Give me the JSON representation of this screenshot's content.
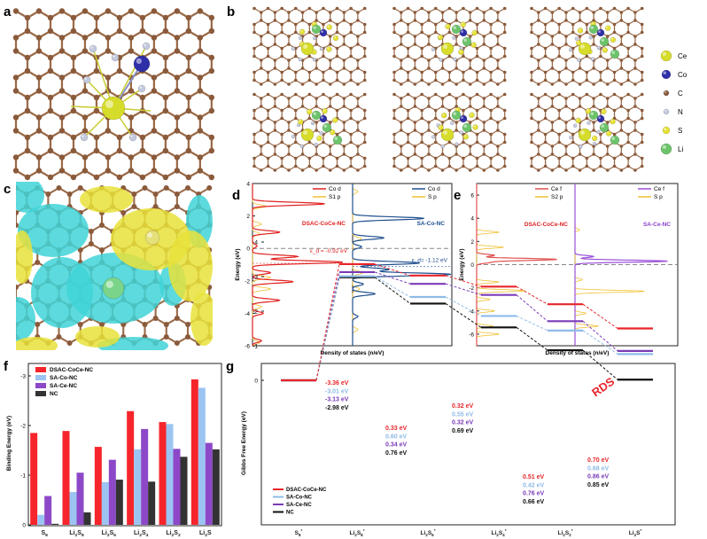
{
  "panel_labels": [
    "a",
    "b",
    "c",
    "d",
    "e",
    "f",
    "g"
  ],
  "colors": {
    "carbon": "#8a5a3b",
    "nitrogen": "#c3c9de",
    "cobalt": "#2f2fa8",
    "cerium": "#d6dc2a",
    "sulfur": "#e6e236",
    "lithium": "#6cc46a",
    "cyan": "#3fd3d8",
    "yellow": "#e8e23a"
  },
  "structure_legend": [
    {
      "label": "Ce",
      "color": "#d6dc2a"
    },
    {
      "label": "Co",
      "color": "#2f2fa8"
    },
    {
      "label": "C",
      "color": "#8a5a3b"
    },
    {
      "label": "N",
      "color": "#c3c9de"
    },
    {
      "label": "S",
      "color": "#e6e236"
    },
    {
      "label": "Li",
      "color": "#6cc46a"
    }
  ],
  "chart_data": [
    {
      "id": "d",
      "type": "line",
      "title": "",
      "xlabel": "Density of states (n/eV)",
      "ylabel": "Energy (eV)",
      "ylim": [
        -6,
        4
      ],
      "yticks": [
        -6,
        -4,
        -2,
        0,
        2,
        4
      ],
      "subplots": [
        {
          "name": "DSAC-CoCe-NC",
          "color": "#e02020",
          "dband_label": "ε_d = -0.92 eV",
          "dband_center": -0.92,
          "series": [
            {
              "name": "Co d",
              "color": "#e02020",
              "peaks": [
                [
                  2.75,
                  0.8
                ],
                [
                  1.0,
                  0.3
                ],
                [
                  0.15,
                  0.05
                ],
                [
                  -0.5,
                  0.5
                ],
                [
                  -0.85,
                  1.0
                ],
                [
                  -1.5,
                  0.2
                ],
                [
                  -2.05,
                  0.45
                ],
                [
                  -3.2,
                  0.3
                ],
                [
                  -4.0,
                  0.12
                ],
                [
                  -5.7,
                  0.1
                ]
              ]
            },
            {
              "name": "S1 p",
              "color": "#f0c030",
              "peaks": [
                [
                  2.6,
                  0.15
                ],
                [
                  1.5,
                  0.1
                ],
                [
                  0.9,
                  0.08
                ],
                [
                  -1.8,
                  0.2
                ],
                [
                  -2.5,
                  0.2
                ],
                [
                  -3.6,
                  0.1
                ],
                [
                  -5.8,
                  0.08
                ]
              ]
            }
          ]
        },
        {
          "name": "SA-Co-NC",
          "color": "#1f4f8f",
          "dband_label": "ε_d= -1.12 eV",
          "dband_center": -1.12,
          "series": [
            {
              "name": "Co d",
              "color": "#1f4f8f",
              "peaks": [
                [
                  1.85,
                  0.8
                ],
                [
                  0.65,
                  0.35
                ],
                [
                  0.1,
                  0.1
                ],
                [
                  -0.9,
                  0.75
                ],
                [
                  -1.3,
                  0.4
                ],
                [
                  -1.6,
                  1.1
                ],
                [
                  -2.2,
                  0.12
                ],
                [
                  -2.8,
                  0.25
                ],
                [
                  -4.2,
                  0.06
                ]
              ]
            },
            {
              "name": "S p",
              "color": "#f0c030",
              "peaks": [
                [
                  3.5,
                  0.06
                ],
                [
                  0.6,
                  0.1
                ],
                [
                  -1.5,
                  0.12
                ],
                [
                  -2.5,
                  0.08
                ],
                [
                  -5.0,
                  0.06
                ]
              ]
            }
          ]
        }
      ]
    },
    {
      "id": "e",
      "type": "line",
      "title": "",
      "xlabel": "Density of states (n/eV)",
      "ylabel": "Energy (eV)",
      "ylim": [
        -7,
        7
      ],
      "yticks": [
        -6,
        -4,
        -2,
        0,
        2,
        4,
        6
      ],
      "subplots": [
        {
          "name": "DSAC-CoCe-NC",
          "color": "#e02020",
          "series": [
            {
              "name": "Ce f",
              "color": "#e05050",
              "peaks": [
                [
                  0.45,
                  0.9
                ],
                [
                  0.8,
                  0.2
                ],
                [
                  0.2,
                  0.15
                ]
              ]
            },
            {
              "name": "S2 p",
              "color": "#f0c030",
              "peaks": [
                [
                  2.8,
                  0.25
                ],
                [
                  1.5,
                  0.3
                ],
                [
                  -1.5,
                  0.25
                ],
                [
                  -2.25,
                  0.55
                ],
                [
                  -3.0,
                  0.15
                ],
                [
                  -4.0,
                  0.2
                ],
                [
                  -5.3,
                  0.18
                ],
                [
                  -6.0,
                  0.25
                ]
              ]
            }
          ]
        },
        {
          "name": "SA-Ce-NC",
          "color": "#8a3fc8",
          "series": [
            {
              "name": "Ce f",
              "color": "#9a4fd8",
              "peaks": [
                [
                  0.3,
                  1.0
                ],
                [
                  0.7,
                  0.2
                ]
              ]
            },
            {
              "name": "S p",
              "color": "#f0c030",
              "peaks": [
                [
                  3.0,
                  0.05
                ],
                [
                  -1.3,
                  0.08
                ],
                [
                  -2.3,
                  0.75
                ],
                [
                  -4.2,
                  0.12
                ],
                [
                  -5.3,
                  0.25
                ]
              ]
            }
          ]
        }
      ]
    },
    {
      "id": "f",
      "type": "bar",
      "title": "",
      "xlabel": "",
      "ylabel": "Binding Energy (eV)",
      "ylim": [
        0,
        -3.25
      ],
      "yticks": [
        0,
        -1,
        -2,
        -3
      ],
      "categories": [
        "S8",
        "Li2S8",
        "Li2S6",
        "Li2S4",
        "Li2S2",
        "Li2S"
      ],
      "legend_position": "top-left",
      "series": [
        {
          "name": "DSAC-CoCe-NC",
          "color": "#f5252b",
          "values": [
            -1.85,
            -1.89,
            -1.57,
            -2.29,
            -2.07,
            -2.93
          ]
        },
        {
          "name": "SA-Co-NC",
          "color": "#9cc4f2",
          "values": [
            -0.2,
            -0.66,
            -0.86,
            -1.52,
            -2.03,
            -2.76
          ]
        },
        {
          "name": "SA-Ce-NC",
          "color": "#8d48c8",
          "values": [
            -0.58,
            -1.05,
            -1.31,
            -1.93,
            -1.53,
            -1.65
          ]
        },
        {
          "name": "NC",
          "color": "#333333",
          "values": [
            -0.02,
            -0.25,
            -0.91,
            -0.87,
            -1.37,
            -1.52
          ]
        }
      ]
    },
    {
      "id": "g",
      "type": "line",
      "title": "",
      "xlabel": "",
      "ylabel": "Gibbs Free Energy (eV)",
      "ylim": [
        -4.2,
        0.5
      ],
      "yticks": [
        0,
        -1,
        -2,
        -3,
        -4
      ],
      "categories": [
        "S8*",
        "Li2S8*",
        "Li2S6*",
        "Li2S4*",
        "Li2S2*",
        "Li2S*"
      ],
      "legend_position": "bottom-left",
      "annotation": "RDS",
      "series": [
        {
          "name": "DSAC-CoCe-NC",
          "color": "#e8262b",
          "values": [
            0,
            -3.36,
            -3.03,
            -2.71,
            -2.2,
            -1.5
          ]
        },
        {
          "name": "SA-Co-NC",
          "color": "#8fbbe8",
          "values": [
            0,
            -3.01,
            -2.41,
            -1.86,
            -1.44,
            -0.76
          ]
        },
        {
          "name": "SA-Ce-NC",
          "color": "#7b3cb8",
          "values": [
            0,
            -3.13,
            -2.79,
            -2.47,
            -1.71,
            -0.85
          ]
        },
        {
          "name": "NC",
          "color": "#111111",
          "values": [
            0,
            -2.98,
            -2.22,
            -1.53,
            -0.87,
            -0.02
          ]
        }
      ],
      "step_labels": [
        [
          "-3.36 eV",
          "-3.01 eV",
          "-3.13 eV",
          "-2.98 eV"
        ],
        [
          "0.33 eV",
          "0.60 eV",
          "0.34 eV",
          "0.76 eV"
        ],
        [
          "0.32 eV",
          "0.55 eV",
          "0.32 eV",
          "0.69 eV"
        ],
        [
          "0.51 eV",
          "0.42 eV",
          "0.76 eV",
          "0.66 eV"
        ],
        [
          "0.70 eV",
          "0.68 eV",
          "0.86 eV",
          "0.85 eV"
        ]
      ]
    }
  ]
}
